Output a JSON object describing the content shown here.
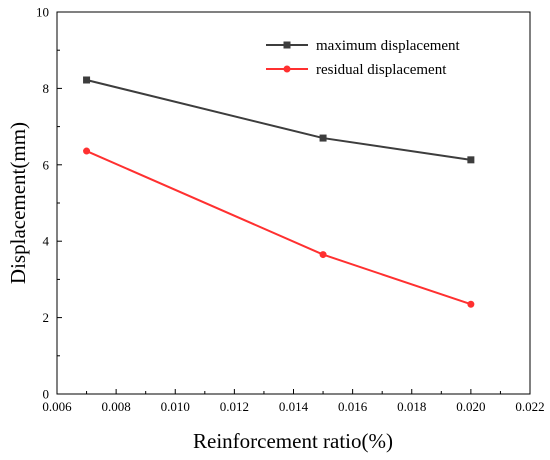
{
  "chart_data": {
    "type": "line",
    "xlabel": "Reinforcement ratio(%)",
    "ylabel": "Displacement(mm)",
    "xlim": [
      0.006,
      0.022
    ],
    "ylim": [
      0,
      10
    ],
    "xticks": [
      "0.006",
      "0.008",
      "0.010",
      "0.012",
      "0.014",
      "0.016",
      "0.018",
      "0.020",
      "0.022"
    ],
    "yticks": [
      "0",
      "2",
      "4",
      "6",
      "8",
      "10"
    ],
    "x": [
      0.007,
      0.015,
      0.02
    ],
    "series": [
      {
        "name": "maximum displacement",
        "values": [
          8.22,
          6.7,
          6.13
        ],
        "color": "#3d3d3d",
        "marker": "square"
      },
      {
        "name": "residual displacement",
        "values": [
          6.36,
          3.65,
          2.35
        ],
        "color": "#ff3030",
        "marker": "circle"
      }
    ],
    "grid": false,
    "legend_position": "top-right"
  }
}
